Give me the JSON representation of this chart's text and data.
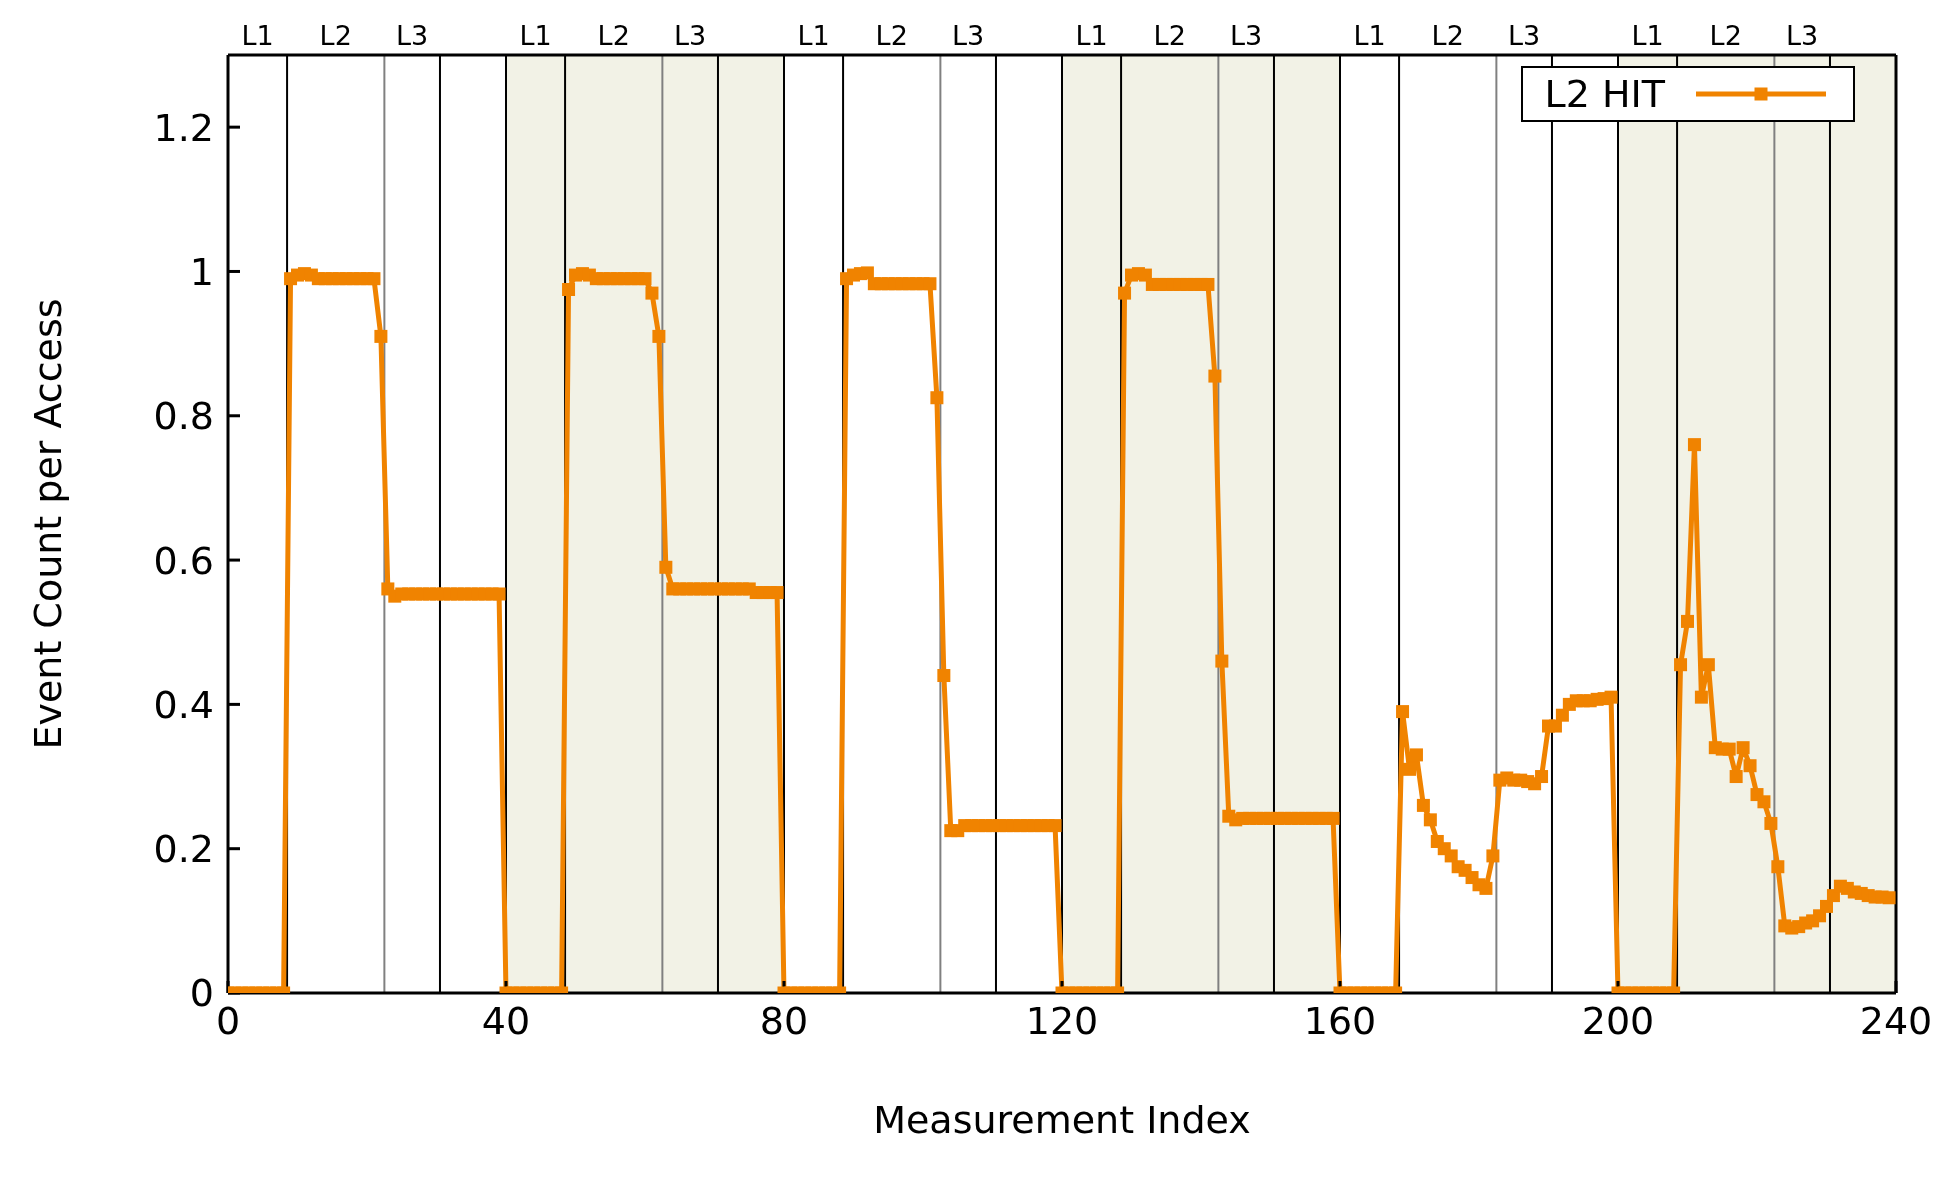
{
  "chart_data": {
    "type": "line",
    "xlabel": "Measurement Index",
    "ylabel": "Event Count per Access",
    "x": [
      0,
      1,
      2,
      3,
      4,
      5,
      6,
      7,
      8,
      9,
      10,
      11,
      12,
      13,
      14,
      15,
      16,
      17,
      18,
      19,
      20,
      21,
      22,
      23,
      24,
      25,
      26,
      27,
      28,
      29,
      30,
      31,
      32,
      33,
      34,
      35,
      36,
      37,
      38,
      39,
      40,
      41,
      42,
      43,
      44,
      45,
      46,
      47,
      48,
      49,
      50,
      51,
      52,
      53,
      54,
      55,
      56,
      57,
      58,
      59,
      60,
      61,
      62,
      63,
      64,
      65,
      66,
      67,
      68,
      69,
      70,
      71,
      72,
      73,
      74,
      75,
      76,
      77,
      78,
      79,
      80,
      81,
      82,
      83,
      84,
      85,
      86,
      87,
      88,
      89,
      90,
      91,
      92,
      93,
      94,
      95,
      96,
      97,
      98,
      99,
      100,
      101,
      102,
      103,
      104,
      105,
      106,
      107,
      108,
      109,
      110,
      111,
      112,
      113,
      114,
      115,
      116,
      117,
      118,
      119,
      120,
      121,
      122,
      123,
      124,
      125,
      126,
      127,
      128,
      129,
      130,
      131,
      132,
      133,
      134,
      135,
      136,
      137,
      138,
      139,
      140,
      141,
      142,
      143,
      144,
      145,
      146,
      147,
      148,
      149,
      150,
      151,
      152,
      153,
      154,
      155,
      156,
      157,
      158,
      159,
      160,
      161,
      162,
      163,
      164,
      165,
      166,
      167,
      168,
      169,
      170,
      171,
      172,
      173,
      174,
      175,
      176,
      177,
      178,
      179,
      180,
      181,
      182,
      183,
      184,
      185,
      186,
      187,
      188,
      189,
      190,
      191,
      192,
      193,
      194,
      195,
      196,
      197,
      198,
      199,
      200,
      201,
      202,
      203,
      204,
      205,
      206,
      207,
      208,
      209,
      210,
      211,
      212,
      213,
      214,
      215,
      216,
      217,
      218,
      219,
      220,
      221,
      222,
      223,
      224,
      225,
      226,
      227,
      228,
      229,
      230,
      231,
      232,
      233,
      234,
      235,
      236,
      237,
      238,
      239
    ],
    "series": [
      {
        "name": "L2 HIT",
        "color": "#f08300",
        "values": [
          0,
          0,
          0,
          0,
          0,
          0,
          0,
          0,
          0,
          0.99,
          0.995,
          0.997,
          0.995,
          0.99,
          0.99,
          0.99,
          0.99,
          0.99,
          0.99,
          0.99,
          0.99,
          0.99,
          0.91,
          0.56,
          0.55,
          0.553,
          0.553,
          0.553,
          0.553,
          0.553,
          0.553,
          0.553,
          0.553,
          0.553,
          0.553,
          0.553,
          0.553,
          0.553,
          0.553,
          0.553,
          0,
          0,
          0,
          0,
          0,
          0,
          0,
          0,
          0,
          0.975,
          0.995,
          0.997,
          0.995,
          0.99,
          0.99,
          0.99,
          0.99,
          0.99,
          0.99,
          0.99,
          0.99,
          0.97,
          0.91,
          0.59,
          0.56,
          0.56,
          0.56,
          0.56,
          0.56,
          0.56,
          0.56,
          0.56,
          0.56,
          0.56,
          0.56,
          0.56,
          0.555,
          0.555,
          0.555,
          0.555,
          0,
          0,
          0,
          0,
          0,
          0,
          0,
          0,
          0,
          0.99,
          0.995,
          0.997,
          0.998,
          0.983,
          0.983,
          0.983,
          0.983,
          0.983,
          0.983,
          0.983,
          0.983,
          0.983,
          0.825,
          0.44,
          0.225,
          0.225,
          0.232,
          0.232,
          0.232,
          0.232,
          0.232,
          0.232,
          0.232,
          0.232,
          0.232,
          0.232,
          0.232,
          0.232,
          0.232,
          0.232,
          0,
          0,
          0,
          0,
          0,
          0,
          0,
          0,
          0,
          0.97,
          0.995,
          0.997,
          0.995,
          0.982,
          0.982,
          0.982,
          0.982,
          0.982,
          0.982,
          0.982,
          0.982,
          0.982,
          0.855,
          0.46,
          0.245,
          0.24,
          0.242,
          0.242,
          0.242,
          0.242,
          0.242,
          0.242,
          0.242,
          0.242,
          0.242,
          0.242,
          0.242,
          0.242,
          0.242,
          0.242,
          0,
          0,
          0,
          0,
          0,
          0,
          0,
          0,
          0,
          0.39,
          0.31,
          0.33,
          0.26,
          0.24,
          0.21,
          0.2,
          0.19,
          0.175,
          0.17,
          0.16,
          0.15,
          0.145,
          0.19,
          0.295,
          0.298,
          0.295,
          0.295,
          0.293,
          0.29,
          0.3,
          0.37,
          0.37,
          0.385,
          0.4,
          0.405,
          0.405,
          0.405,
          0.407,
          0.408,
          0.41,
          0,
          0,
          0,
          0,
          0,
          0,
          0,
          0,
          0,
          0.455,
          0.515,
          0.76,
          0.41,
          0.455,
          0.34,
          0.338,
          0.338,
          0.3,
          0.34,
          0.315,
          0.275,
          0.265,
          0.235,
          0.175,
          0.093,
          0.09,
          0.092,
          0.097,
          0.1,
          0.107,
          0.12,
          0.135,
          0.148,
          0.145,
          0.14,
          0.138,
          0.135,
          0.133,
          0.133,
          0.132
        ]
      }
    ],
    "xlim": [
      0,
      240
    ],
    "xticks": [
      0,
      40,
      80,
      120,
      160,
      200,
      240
    ],
    "ylim": [
      0,
      1.3
    ],
    "yticks": [
      0,
      0.2,
      0.4,
      0.6,
      0.8,
      1,
      1.2
    ],
    "bands": [
      {
        "axis": "x",
        "from": 40,
        "to": 80,
        "color": "#f2f2e6"
      },
      {
        "axis": "x",
        "from": 120,
        "to": 160,
        "color": "#f2f2e6"
      },
      {
        "axis": "x",
        "from": 200,
        "to": 240,
        "color": "#f2f2e6"
      }
    ],
    "ref_lines": [
      {
        "axis": "x",
        "value": 8.5,
        "color": "#000000"
      },
      {
        "axis": "x",
        "value": 22.5,
        "color": "#808080"
      },
      {
        "axis": "x",
        "value": 30.5,
        "color": "#000000"
      },
      {
        "axis": "x",
        "value": 40,
        "color": "#000000"
      },
      {
        "axis": "x",
        "value": 48.5,
        "color": "#000000"
      },
      {
        "axis": "x",
        "value": 62.5,
        "color": "#808080"
      },
      {
        "axis": "x",
        "value": 70.5,
        "color": "#000000"
      },
      {
        "axis": "x",
        "value": 80,
        "color": "#000000"
      },
      {
        "axis": "x",
        "value": 88.5,
        "color": "#000000"
      },
      {
        "axis": "x",
        "value": 102.5,
        "color": "#808080"
      },
      {
        "axis": "x",
        "value": 110.5,
        "color": "#000000"
      },
      {
        "axis": "x",
        "value": 120,
        "color": "#000000"
      },
      {
        "axis": "x",
        "value": 128.5,
        "color": "#000000"
      },
      {
        "axis": "x",
        "value": 142.5,
        "color": "#808080"
      },
      {
        "axis": "x",
        "value": 150.5,
        "color": "#000000"
      },
      {
        "axis": "x",
        "value": 160,
        "color": "#000000"
      },
      {
        "axis": "x",
        "value": 168.5,
        "color": "#000000"
      },
      {
        "axis": "x",
        "value": 182.5,
        "color": "#808080"
      },
      {
        "axis": "x",
        "value": 190.5,
        "color": "#000000"
      },
      {
        "axis": "x",
        "value": 200,
        "color": "#000000"
      },
      {
        "axis": "x",
        "value": 208.5,
        "color": "#000000"
      },
      {
        "axis": "x",
        "value": 222.5,
        "color": "#808080"
      },
      {
        "axis": "x",
        "value": 230.5,
        "color": "#000000"
      }
    ],
    "annotations": [
      "L1",
      "L2",
      "L3",
      "L1",
      "L2",
      "L3",
      "L1",
      "L2",
      "L3",
      "L1",
      "L2",
      "L3",
      "L1",
      "L2",
      "L3",
      "L1",
      "L2",
      "L3"
    ],
    "legend": "top right",
    "marker": "square",
    "line_style": "solid"
  }
}
